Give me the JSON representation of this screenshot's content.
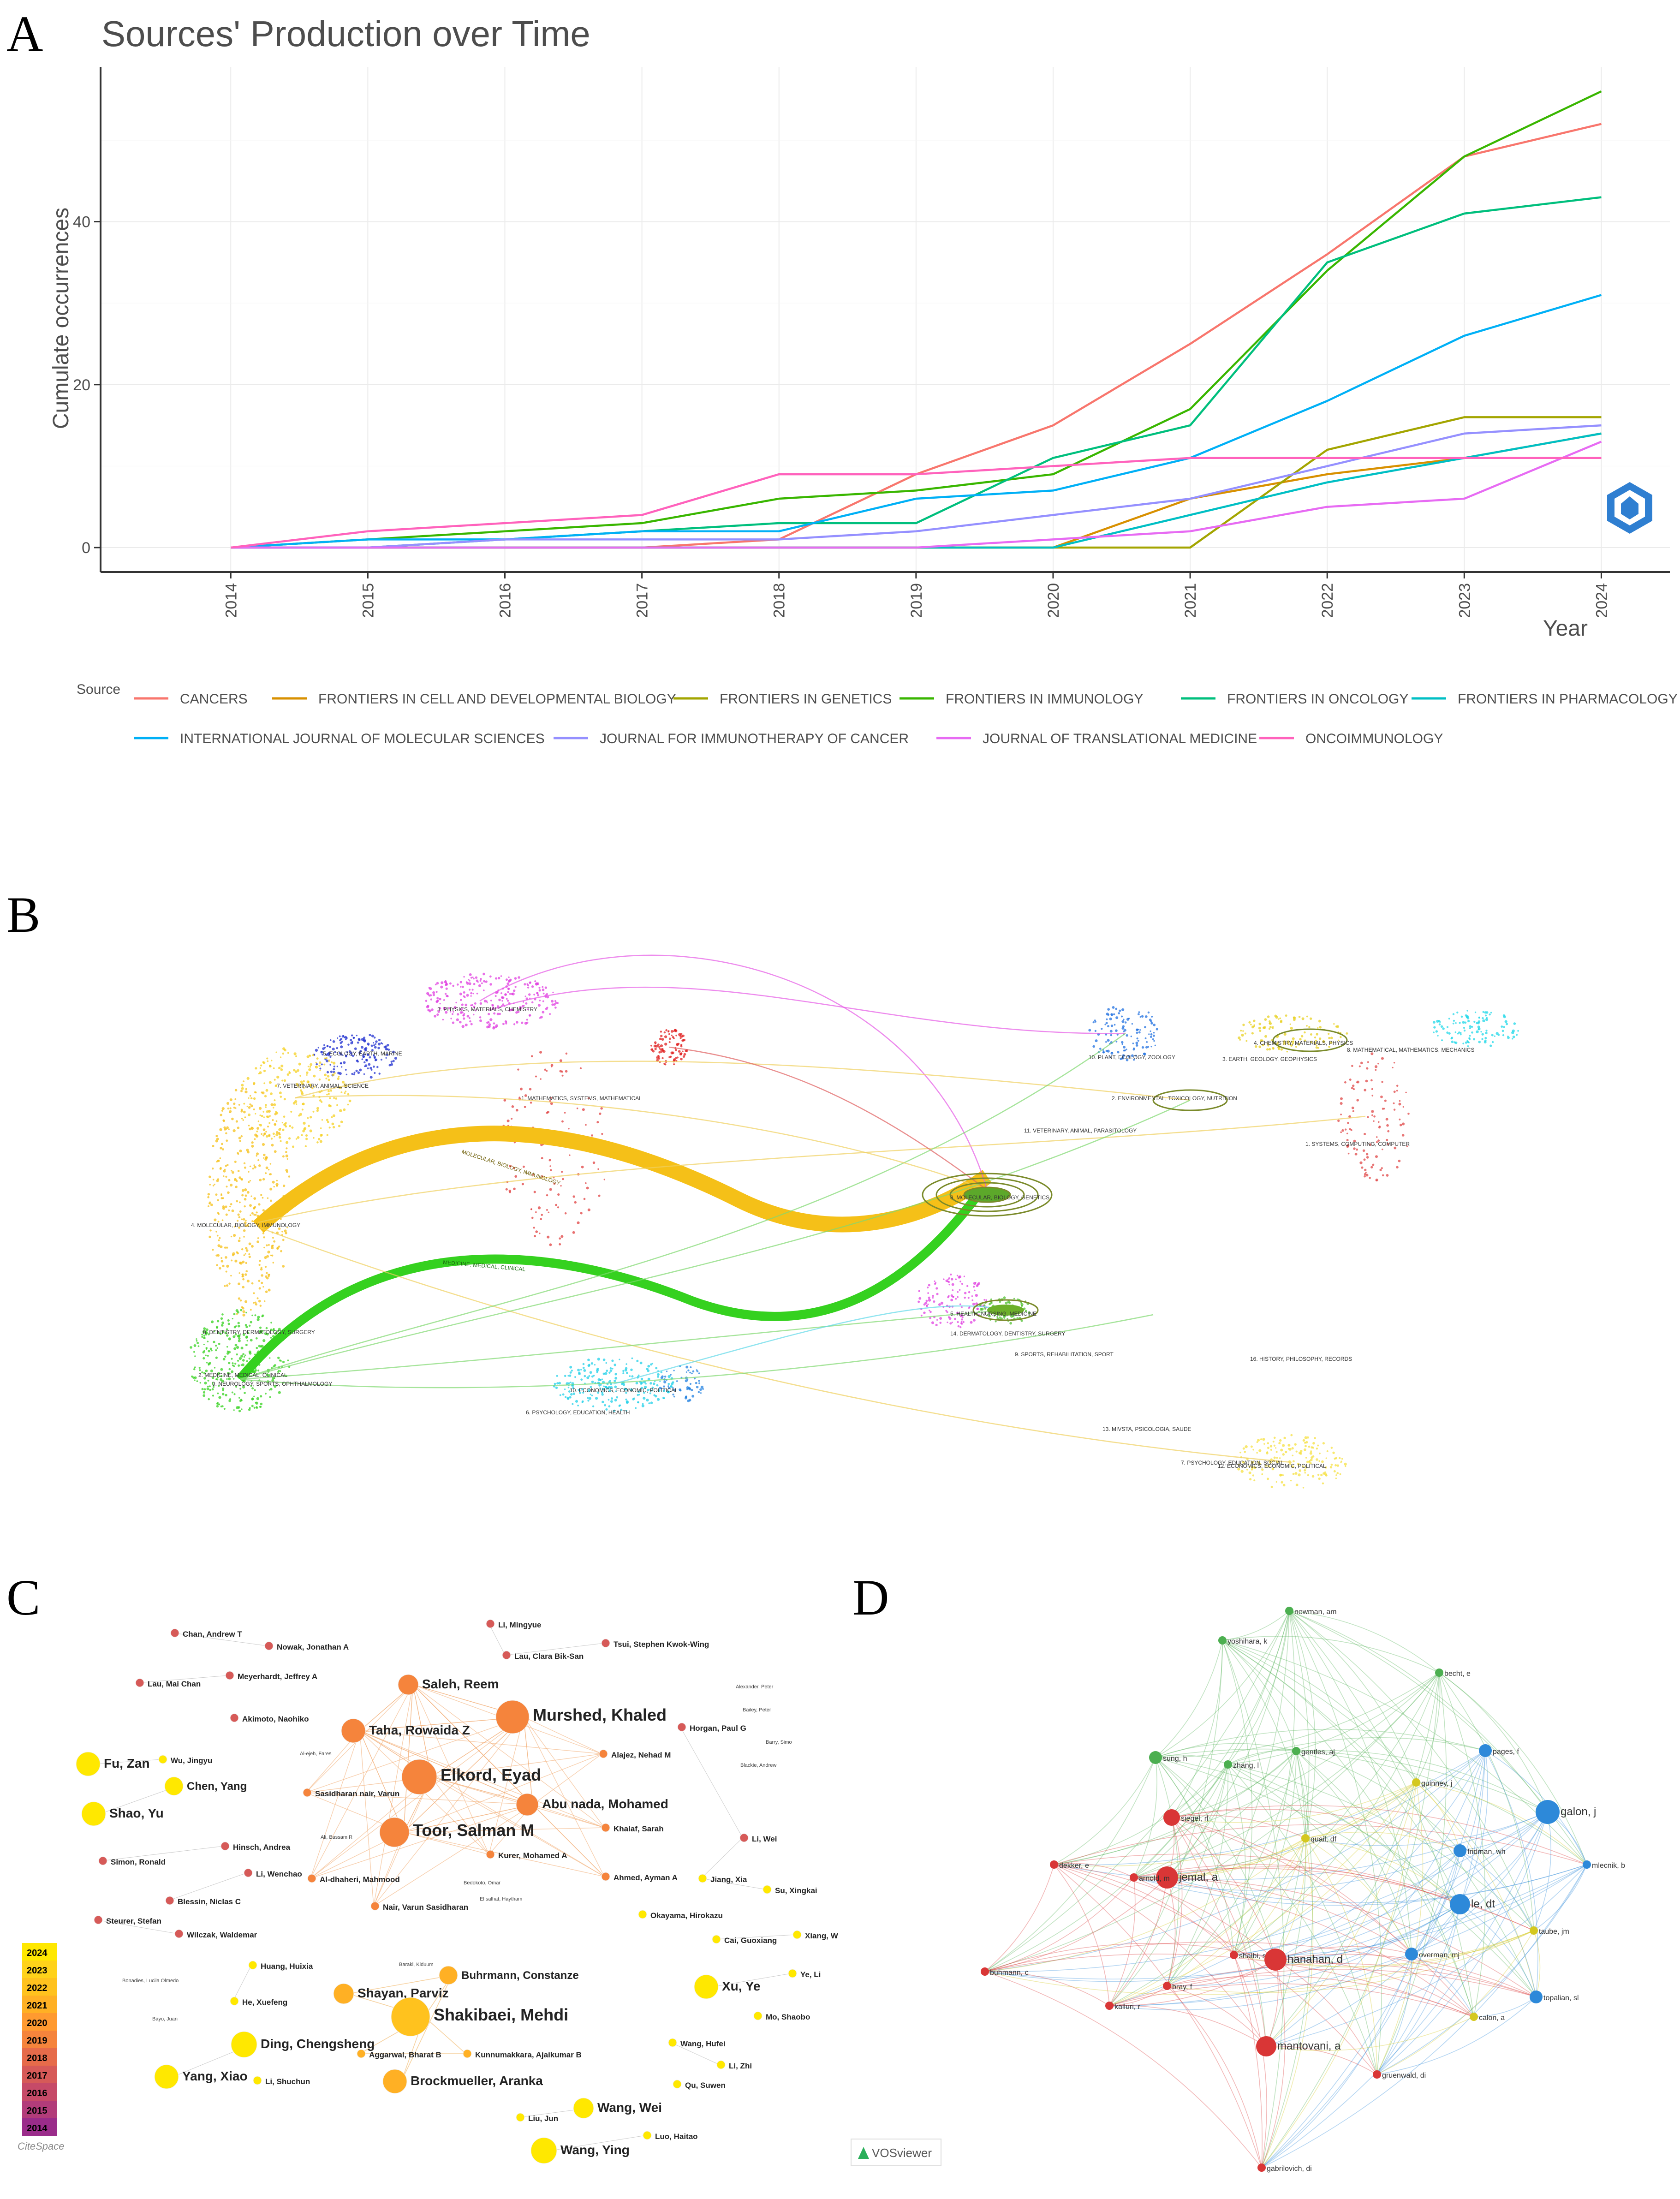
{
  "panels": {
    "a": "A",
    "b": "B",
    "c": "C",
    "d": "D"
  },
  "chart_data": {
    "type": "line",
    "title": "Sources' Production over Time",
    "xlabel": "Year",
    "ylabel": "Cumulate occurrences",
    "x": [
      2014,
      2015,
      2016,
      2017,
      2018,
      2019,
      2020,
      2021,
      2022,
      2023,
      2024
    ],
    "x_tick_labels": [
      "2014",
      "2015",
      "2016",
      "2017",
      "2018",
      "2019",
      "2020",
      "2021",
      "2022",
      "2023",
      "2024"
    ],
    "y_ticks": [
      0,
      20,
      40
    ],
    "ylim": [
      -3,
      59
    ],
    "legend_title": "Source",
    "legend_position": "bottom",
    "series": [
      {
        "name": "CANCERS",
        "color": "#F8766D",
        "values": [
          0,
          0,
          0,
          0,
          1,
          9,
          15,
          25,
          36,
          48,
          52
        ]
      },
      {
        "name": "FRONTIERS IN CELL AND DEVELOPMENTAL BIOLOGY",
        "color": "#D89000",
        "values": [
          0,
          0,
          0,
          0,
          0,
          0,
          0,
          6,
          9,
          11,
          14
        ]
      },
      {
        "name": "FRONTIERS IN GENETICS",
        "color": "#A3A500",
        "values": [
          0,
          0,
          0,
          0,
          0,
          0,
          0,
          0,
          12,
          16,
          16
        ]
      },
      {
        "name": "FRONTIERS IN IMMUNOLOGY",
        "color": "#39B600",
        "values": [
          0,
          1,
          2,
          3,
          6,
          7,
          9,
          17,
          34,
          48,
          56
        ]
      },
      {
        "name": "FRONTIERS IN ONCOLOGY",
        "color": "#00BF7D",
        "values": [
          0,
          0,
          1,
          2,
          3,
          3,
          11,
          15,
          35,
          41,
          43
        ]
      },
      {
        "name": "FRONTIERS IN PHARMACOLOGY",
        "color": "#00BFC4",
        "values": [
          0,
          0,
          0,
          0,
          0,
          0,
          0,
          4,
          8,
          11,
          14
        ]
      },
      {
        "name": "INTERNATIONAL JOURNAL OF MOLECULAR SCIENCES",
        "color": "#00B0F6",
        "values": [
          0,
          1,
          1,
          2,
          2,
          6,
          7,
          11,
          18,
          26,
          31
        ]
      },
      {
        "name": "JOURNAL FOR IMMUNOTHERAPY OF CANCER",
        "color": "#9590FF",
        "values": [
          0,
          0,
          1,
          1,
          1,
          2,
          4,
          6,
          10,
          14,
          15
        ]
      },
      {
        "name": "JOURNAL OF TRANSLATIONAL MEDICINE",
        "color": "#E76BF3",
        "values": [
          0,
          0,
          0,
          0,
          0,
          0,
          1,
          2,
          5,
          6,
          13
        ]
      },
      {
        "name": "ONCOIMMUNOLOGY",
        "color": "#FF62BC",
        "values": [
          0,
          2,
          3,
          4,
          9,
          9,
          10,
          11,
          11,
          11,
          11
        ]
      }
    ]
  },
  "overlay": {
    "left_clusters": [
      "1. MATHEMATICS, SYSTEMS, MATHEMATICAL",
      "3. PHYSICS, MATERIALS, CHEMISTRY",
      "5. ECOLOGY, EARTH, MARINE",
      "7. VETERINARY, ANIMAL, SCIENCE",
      "4. MOLECULAR, BIOLOGY, IMMUNOLOGY",
      "8. DENTISTRY, DERMATOLOGY, SURGERY",
      "2. MEDICINE, MEDICAL, CLINICAL",
      "9. NEUROLOGY, SPORTS, OPHTHALMOLOGY",
      "10. ECONOMICS, ECONOMIC, POLITICAL",
      "6. PSYCHOLOGY, EDUCATION, HEALTH"
    ],
    "right_clusters": [
      "10. PLANT, ECOLOGY, ZOOLOGY",
      "4. CHEMISTRY, MATERIALS, PHYSICS",
      "3. EARTH, GEOLOGY, GEOPHYSICS",
      "8. MATHEMATICAL, MATHEMATICS, MECHANICS",
      "2. ENVIRONMENTAL, TOXICOLOGY, NUTRITION",
      "11. VETERINARY, ANIMAL, PARASITOLOGY",
      "1. SYSTEMS, COMPUTING, COMPUTER",
      "8. MOLECULAR, BIOLOGY, GENETICS",
      "5. HEALTH, NURSING, MEDICINE",
      "14. DERMATOLOGY, DENTISTRY, SURGERY",
      "9. SPORTS, REHABILITATION, SPORT",
      "16. HISTORY, PHILOSOPHY, RECORDS",
      "13. MIVSTA, PSICOLOGIA, SAUDE",
      "7. PSYCHOLOGY, EDUCATION, SOCIAL",
      "12. ECONOMICS, ECONOMIC, POLITICAL"
    ],
    "band_labels": [
      "MOLECULAR, BIOLOGY, IMMUNOLOGY",
      "MEDICINE, MEDICAL, CLINICAL"
    ]
  },
  "citespace": {
    "authors": [
      {
        "name": "Chan, Andrew T",
        "big": false
      },
      {
        "name": "Nowak, Jonathan A",
        "big": false
      },
      {
        "name": "Lau, Mai Chan",
        "big": false
      },
      {
        "name": "Meyerhardt, Jeffrey A",
        "big": false
      },
      {
        "name": "Akimoto, Naohiko",
        "big": false
      },
      {
        "name": "Fu, Zan",
        "big": true
      },
      {
        "name": "Wu, Jingyu",
        "big": false
      },
      {
        "name": "Chen, Yang",
        "big": true
      },
      {
        "name": "Shao, Yu",
        "big": true
      },
      {
        "name": "Hinsch, Andrea",
        "big": false
      },
      {
        "name": "Simon, Ronald",
        "big": false
      },
      {
        "name": "Li, Wenchao",
        "big": false
      },
      {
        "name": "Blessin, Niclas C",
        "big": false
      },
      {
        "name": "Steurer, Stefan",
        "big": false
      },
      {
        "name": "Wilczak, Waldemar",
        "big": false
      },
      {
        "name": "Huang, Huixia",
        "big": false
      },
      {
        "name": "He, Xuefeng",
        "big": false
      },
      {
        "name": "Ding, Chengsheng",
        "big": true
      },
      {
        "name": "Yang, Xiao",
        "big": true
      },
      {
        "name": "Li, Shuchun",
        "big": false
      },
      {
        "name": "Li, Mingyue",
        "big": false
      },
      {
        "name": "Lau, Clara Bik-San",
        "big": false
      },
      {
        "name": "Tsui, Stephen Kwok-Wing",
        "big": false
      },
      {
        "name": "Saleh, Reem",
        "big": true
      },
      {
        "name": "Murshed, Khaled",
        "big": true
      },
      {
        "name": "Taha, Rowaida Z",
        "big": true
      },
      {
        "name": "Elkord, Eyad",
        "big": true
      },
      {
        "name": "Abu nada, Mohamed",
        "big": true
      },
      {
        "name": "Toor, Salman M",
        "big": true
      },
      {
        "name": "Sasidharan nair, Varun",
        "big": false
      },
      {
        "name": "Al-dhaheri, Mahmood",
        "big": false
      },
      {
        "name": "Kurer, Mohamed A",
        "big": false
      },
      {
        "name": "Alajez, Nehad M",
        "big": false
      },
      {
        "name": "Khalaf, Sarah",
        "big": false
      },
      {
        "name": "Ahmed, Ayman A",
        "big": false
      },
      {
        "name": "Nair, Varun Sasidharan",
        "big": false
      },
      {
        "name": "Horgan, Paul G",
        "big": false
      },
      {
        "name": "Li, Wei",
        "big": false
      },
      {
        "name": "Jiang, Xia",
        "big": false
      },
      {
        "name": "Su, Xingkai",
        "big": false
      },
      {
        "name": "Okayama, Hirokazu",
        "big": false
      },
      {
        "name": "Cai, Guoxiang",
        "big": false
      },
      {
        "name": "Xiang, W",
        "big": false
      },
      {
        "name": "Xu, Ye",
        "big": true
      },
      {
        "name": "Ye, Li",
        "big": false
      },
      {
        "name": "Mo, Shaobo",
        "big": false
      },
      {
        "name": "Shayan, Parviz",
        "big": true
      },
      {
        "name": "Buhrmann, Constanze",
        "big": true
      },
      {
        "name": "Shakibaei, Mehdi",
        "big": true
      },
      {
        "name": "Aggarwal, Bharat B",
        "big": false
      },
      {
        "name": "Kunnumakkara, Ajaikumar B",
        "big": false
      },
      {
        "name": "Brockmueller, Aranka",
        "big": true
      },
      {
        "name": "Wang, Hufei",
        "big": false
      },
      {
        "name": "Li, Zhi",
        "big": false
      },
      {
        "name": "Qu, Suwen",
        "big": false
      },
      {
        "name": "Liu, Jun",
        "big": false
      },
      {
        "name": "Wang, Wei",
        "big": true
      },
      {
        "name": "Wang, Ying",
        "big": true
      },
      {
        "name": "Luo, Haitao",
        "big": false
      }
    ],
    "tiny_labels": [
      "Alexander, Peter",
      "Bailey, Peter",
      "Barry, Simo",
      "Blackie, Andrew",
      "Al-ejeh, Fares",
      "Ali, Bassam R",
      "Bedokoto, Omar",
      "El salhat, Haytham",
      "Baraki, Kiduum",
      "Bonadies, Lucila Olmedo",
      "Bayo, Juan"
    ],
    "years": [
      "2024",
      "2023",
      "2022",
      "2021",
      "2020",
      "2019",
      "2018",
      "2017",
      "2016",
      "2015",
      "2014"
    ],
    "year_colors": [
      "#FFE800",
      "#FFD21A",
      "#FFC21E",
      "#FFB024",
      "#FF9A30",
      "#F5843C",
      "#E66B4A",
      "#D65A58",
      "#C64A68",
      "#B23C7A",
      "#9A2C8A"
    ],
    "logo": "CiteSpace"
  },
  "vosviewer": {
    "logo": "VOSviewer",
    "nodes": [
      {
        "label": "newman, am",
        "color": "#4CAF50"
      },
      {
        "label": "yoshihara, k",
        "color": "#4CAF50"
      },
      {
        "label": "becht, e",
        "color": "#4CAF50"
      },
      {
        "label": "sung, h",
        "color": "#4CAF50"
      },
      {
        "label": "zhang, l",
        "color": "#4CAF50"
      },
      {
        "label": "gentles, aj",
        "color": "#4CAF50"
      },
      {
        "label": "pages, f",
        "color": "#2D89D9"
      },
      {
        "label": "guinney, j",
        "color": "#D4C820"
      },
      {
        "label": "siegel, rl",
        "color": "#D93636"
      },
      {
        "label": "galon, j",
        "color": "#2D89D9"
      },
      {
        "label": "dekker, e",
        "color": "#D93636"
      },
      {
        "label": "quail, df",
        "color": "#D4C820"
      },
      {
        "label": "fridman, wh",
        "color": "#2D89D9"
      },
      {
        "label": "mlecnik, b",
        "color": "#2D89D9"
      },
      {
        "label": "jemal, a",
        "color": "#D93636"
      },
      {
        "label": "arnold, m",
        "color": "#D93636"
      },
      {
        "label": "le, dt",
        "color": "#2D89D9"
      },
      {
        "label": "taube, jm",
        "color": "#D4C820"
      },
      {
        "label": "buhmann, c",
        "color": "#D93636"
      },
      {
        "label": "shaibi, s",
        "color": "#D93636"
      },
      {
        "label": "hanahan, d",
        "color": "#D93636"
      },
      {
        "label": "overman, mj",
        "color": "#2D89D9"
      },
      {
        "label": "bray, f",
        "color": "#D93636"
      },
      {
        "label": "kalluri, r",
        "color": "#D93636"
      },
      {
        "label": "topalian, sl",
        "color": "#2D89D9"
      },
      {
        "label": "calon, a",
        "color": "#D4C820"
      },
      {
        "label": "mantovani, a",
        "color": "#D93636"
      },
      {
        "label": "gruenwald, di",
        "color": "#D93636"
      },
      {
        "label": "gabrilovich, di",
        "color": "#D93636"
      }
    ]
  }
}
